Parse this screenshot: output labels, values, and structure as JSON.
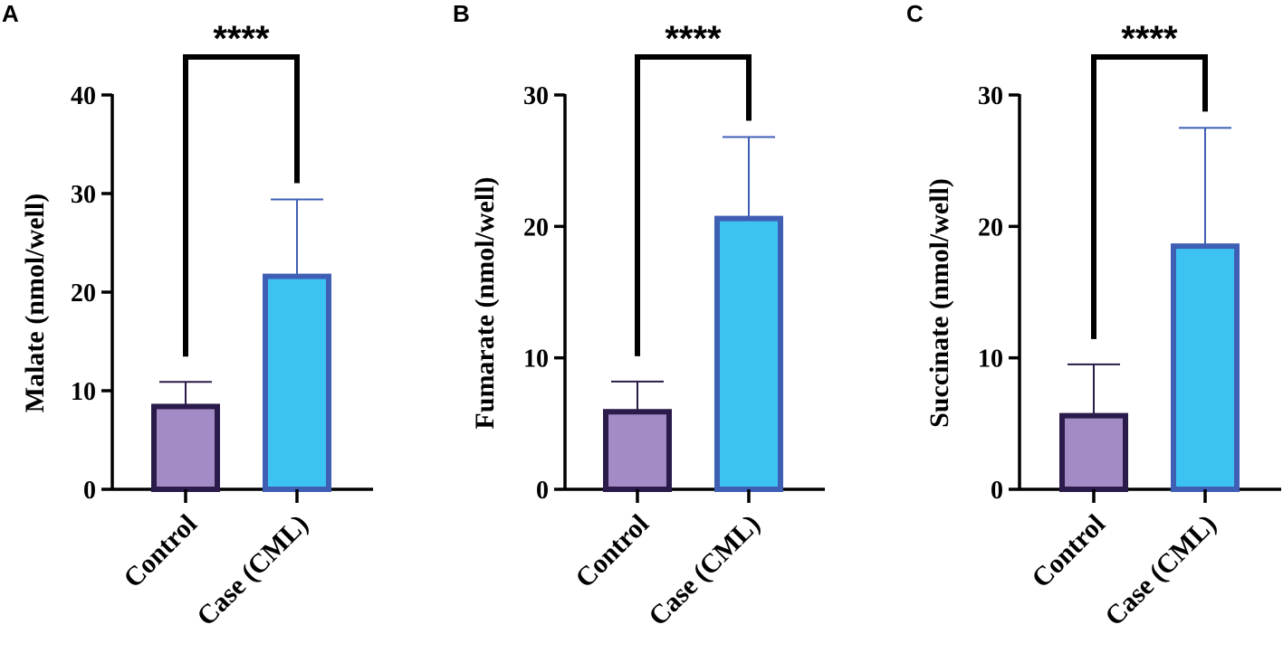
{
  "colors": {
    "control_fill": "#A38BC5",
    "control_border": "#2A1B4A",
    "case_fill": "#3DC3F2",
    "case_border": "#3F5FB5",
    "control_error": "#2A1B4A",
    "case_error": "#3F5FB5"
  },
  "chart_data": [
    {
      "panel": "A",
      "type": "bar",
      "ylabel": "Malate (nmol/well)",
      "categories": [
        "Control",
        "Case (CML)"
      ],
      "values": [
        8.4,
        21.6
      ],
      "errors": [
        2.5,
        7.8
      ],
      "ylim": [
        0,
        40
      ],
      "yticks": [
        0,
        10,
        20,
        30,
        40
      ],
      "significance": "****"
    },
    {
      "panel": "B",
      "type": "bar",
      "ylabel": "Fumarate (nmol/well)",
      "categories": [
        "Control",
        "Case (CML)"
      ],
      "values": [
        5.9,
        20.6
      ],
      "errors": [
        2.3,
        6.2
      ],
      "ylim": [
        0,
        30
      ],
      "yticks": [
        0,
        10,
        20,
        30
      ],
      "significance": "****"
    },
    {
      "panel": "C",
      "type": "bar",
      "ylabel": "Succinate (nmol/well)",
      "categories": [
        "Control",
        "Case (CML)"
      ],
      "values": [
        5.6,
        18.5
      ],
      "errors": [
        3.9,
        9.0
      ],
      "ylim": [
        0,
        30
      ],
      "yticks": [
        0,
        10,
        20,
        30
      ],
      "significance": "****"
    }
  ]
}
